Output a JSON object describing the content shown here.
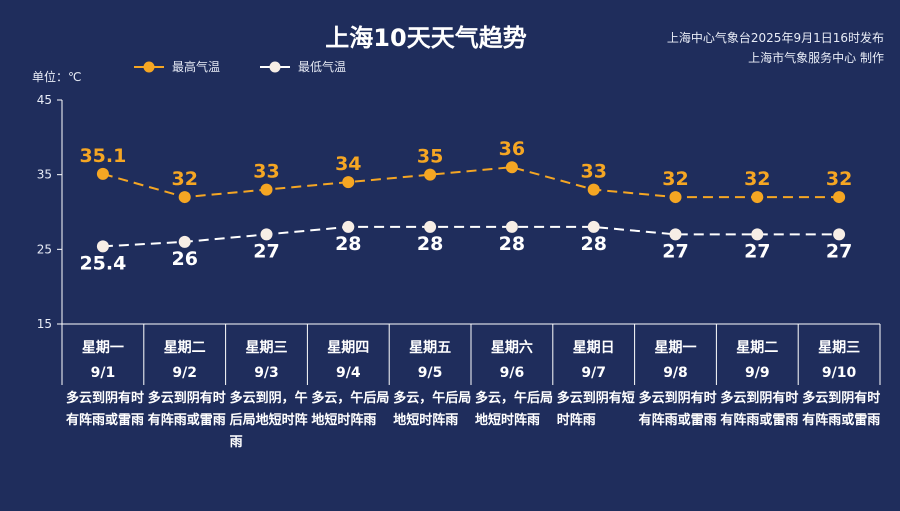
{
  "title": "上海10天天气趋势",
  "publisher": {
    "line1": "上海中心气象台2025年9月1日16时发布",
    "line2": "上海市气象服务中心 制作"
  },
  "unit_label": "单位：℃",
  "colors": {
    "background": "#1f2d5c",
    "high": "#f5a623",
    "low": "#ffffff",
    "axis": "#ffffff"
  },
  "chart_data": {
    "type": "line",
    "title": "上海10天天气趋势",
    "ylabel": "单位：℃",
    "ylim": [
      15,
      45
    ],
    "yticks": [
      15,
      25,
      35,
      45
    ],
    "grid": false,
    "legend_position": "top-left",
    "days": [
      {
        "weekday": "星期一",
        "date": "9/1",
        "desc": "多云到阴有时有阵雨或雷雨"
      },
      {
        "weekday": "星期二",
        "date": "9/2",
        "desc": "多云到阴有时有阵雨或雷雨"
      },
      {
        "weekday": "星期三",
        "date": "9/3",
        "desc": "多云到阴，午后局地短时阵雨"
      },
      {
        "weekday": "星期四",
        "date": "9/4",
        "desc": "多云，午后局地短时阵雨"
      },
      {
        "weekday": "星期五",
        "date": "9/5",
        "desc": "多云，午后局地短时阵雨"
      },
      {
        "weekday": "星期六",
        "date": "9/6",
        "desc": "多云，午后局地短时阵雨"
      },
      {
        "weekday": "星期日",
        "date": "9/7",
        "desc": "多云到阴有短时阵雨"
      },
      {
        "weekday": "星期一",
        "date": "9/8",
        "desc": "多云到阴有时有阵雨或雷雨"
      },
      {
        "weekday": "星期二",
        "date": "9/9",
        "desc": "多云到阴有时有阵雨或雷雨"
      },
      {
        "weekday": "星期三",
        "date": "9/10",
        "desc": "多云到阴有时有阵雨或雷雨"
      }
    ],
    "series": [
      {
        "name": "最高气温",
        "key": "high",
        "values": [
          35.1,
          32,
          33,
          34,
          35,
          36,
          33,
          32,
          32,
          32
        ],
        "labels": [
          "35.1",
          "32",
          "33",
          "34",
          "35",
          "36",
          "33",
          "32",
          "32",
          "32"
        ]
      },
      {
        "name": "最低气温",
        "key": "low",
        "values": [
          25.4,
          26,
          27,
          28,
          28,
          28,
          28,
          27,
          27,
          27
        ],
        "labels": [
          "25.4",
          "26",
          "27",
          "28",
          "28",
          "28",
          "28",
          "27",
          "27",
          "27"
        ]
      }
    ]
  }
}
